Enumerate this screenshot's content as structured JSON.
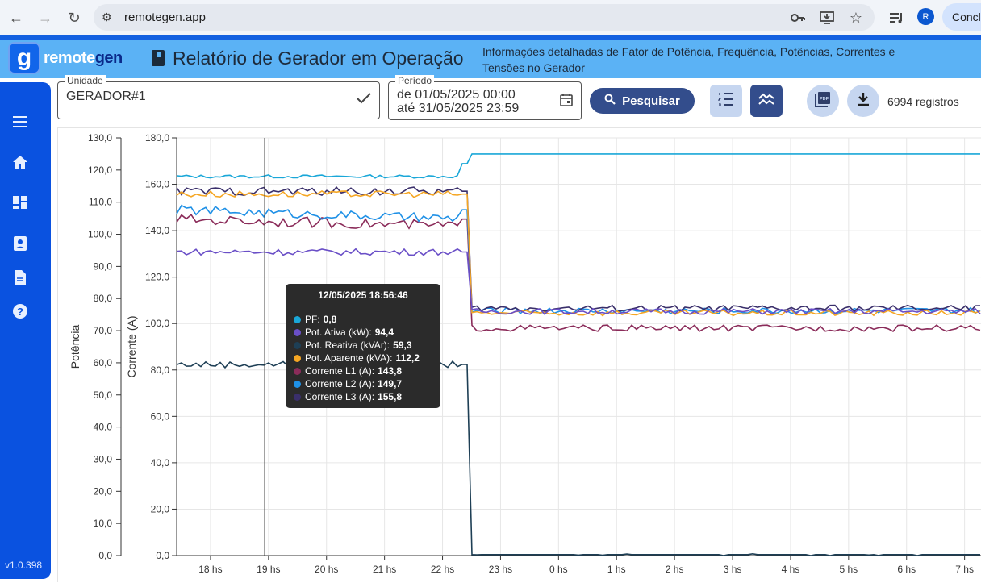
{
  "browser": {
    "url": "remotegen.app",
    "profile_initial": "R",
    "conclude_label": "Concl"
  },
  "header": {
    "logo_prefix": "remote",
    "logo_suffix": "gen",
    "title": "Relatório de Gerador em Operação",
    "subtitle": "Informações detalhadas de Fator de Potência, Frequência, Potências, Correntes e Tensões no Gerador"
  },
  "sidebar": {
    "items": [
      "menu-icon",
      "home-icon",
      "dashboard-icon",
      "account-box-icon",
      "document-icon",
      "help-icon"
    ],
    "version": "v1.0.398"
  },
  "filters": {
    "unit_label": "Unidade",
    "unit_value": "GERADOR#1",
    "period_label": "Período",
    "period_from": "de  01/05/2025 00:00",
    "period_to": "até 31/05/2025 23:59",
    "search_label": "Pesquisar",
    "records": "6994 registros"
  },
  "colors": {
    "pf": "#1aa7d8",
    "pot_ativa": "#6a4fc7",
    "pot_reativa": "#1e3f55",
    "pot_aparente": "#f5a623",
    "corrente_l1": "#8b2c5a",
    "corrente_l2": "#1e90e6",
    "corrente_l3": "#3a2f6b",
    "accent": "#334d8c"
  },
  "tooltip": {
    "title": "12/05/2025 18:56:46",
    "rows": [
      {
        "label": "PF:",
        "value": "0,8",
        "color": "#1aa7d8"
      },
      {
        "label": "Pot. Ativa (kW):",
        "value": "94,4",
        "color": "#6a4fc7"
      },
      {
        "label": "Pot. Reativa (kVAr):",
        "value": "59,3",
        "color": "#1e3f55"
      },
      {
        "label": "Pot. Aparente (kVA):",
        "value": "112,2",
        "color": "#f5a623"
      },
      {
        "label": "Corrente L1 (A):",
        "value": "143,8",
        "color": "#8b2c5a"
      },
      {
        "label": "Corrente L2 (A):",
        "value": "149,7",
        "color": "#1e90e6"
      },
      {
        "label": "Corrente L3 (A):",
        "value": "155,8",
        "color": "#3a2f6b"
      }
    ]
  },
  "chart_data": {
    "type": "line",
    "title": "",
    "ylabel_left": "Potência",
    "ylabel_right": "Corrente (A)",
    "ylim_left": [
      0,
      130
    ],
    "ylim_right": [
      0,
      180
    ],
    "yticks_left": [
      "0,0",
      "10,0",
      "20,0",
      "30,0",
      "40,0",
      "50,0",
      "60,0",
      "70,0",
      "80,0",
      "90,0",
      "100,0",
      "110,0",
      "120,0",
      "130,0"
    ],
    "yticks_right": [
      "0,0",
      "20,0",
      "40,0",
      "60,0",
      "80,0",
      "100,0",
      "120,0",
      "140,0",
      "160,0",
      "180,0"
    ],
    "x": [
      "18 hs",
      "19 hs",
      "20 hs",
      "21 hs",
      "22 hs",
      "23 hs",
      "0 hs",
      "1 hs",
      "2 hs",
      "3 hs",
      "4 hs",
      "5 hs",
      "6 hs",
      "7 hs"
    ],
    "x_start": "17:25",
    "grid": true,
    "series": [
      {
        "name": "PF",
        "axis": "left",
        "before": 118,
        "after": 125
      },
      {
        "name": "Pot. Ativa (kW)",
        "axis": "left",
        "before": 94.5,
        "after": 76
      },
      {
        "name": "Pot. Reativa (kVAr)",
        "axis": "left",
        "before": 59.5,
        "after": 0.3
      },
      {
        "name": "Pot. Aparente (kVA)",
        "axis": "left",
        "before": 112.5,
        "after": 75.5
      },
      {
        "name": "Corrente L1 (A)",
        "axis": "right",
        "before": 145,
        "after": 98
      },
      {
        "name": "Corrente L2 (A)",
        "axis": "right",
        "before": 149,
        "after": 105.5
      },
      {
        "name": "Corrente L3 (A)",
        "axis": "right",
        "before": 157,
        "after": 106.5
      }
    ],
    "step_time": "22:20",
    "cursor_time": "18:56"
  }
}
